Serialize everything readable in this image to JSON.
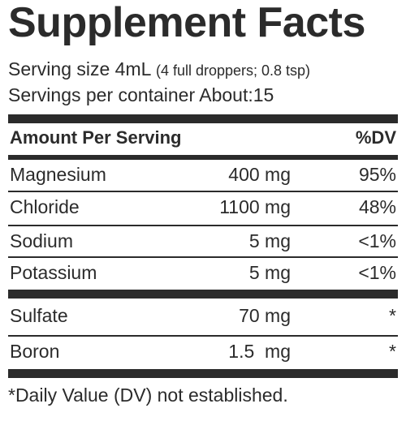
{
  "label": {
    "title": "Supplement Facts",
    "serving_size_label": "Serving size 4mL",
    "serving_size_detail": "(4 full droppers; 0.8 tsp)",
    "servings_per_container": "Servings per container About:15",
    "header_amount": "Amount Per Serving",
    "header_dv": "%DV",
    "nutrients": [
      {
        "name": "Magnesium",
        "amount": "400 mg",
        "dv": "95%"
      },
      {
        "name": "Chloride",
        "amount": "1100 mg",
        "dv": "48%"
      },
      {
        "name": "Sodium",
        "amount": "5 mg",
        "dv": "<1%"
      },
      {
        "name": "Potassium",
        "amount": "5 mg",
        "dv": "<1%"
      },
      {
        "name": "Sulfate",
        "amount": "70 mg",
        "dv": "*"
      },
      {
        "name": "Boron",
        "amount": "1.5  mg",
        "dv": "*"
      }
    ],
    "footnote": "*Daily Value (DV) not established."
  }
}
